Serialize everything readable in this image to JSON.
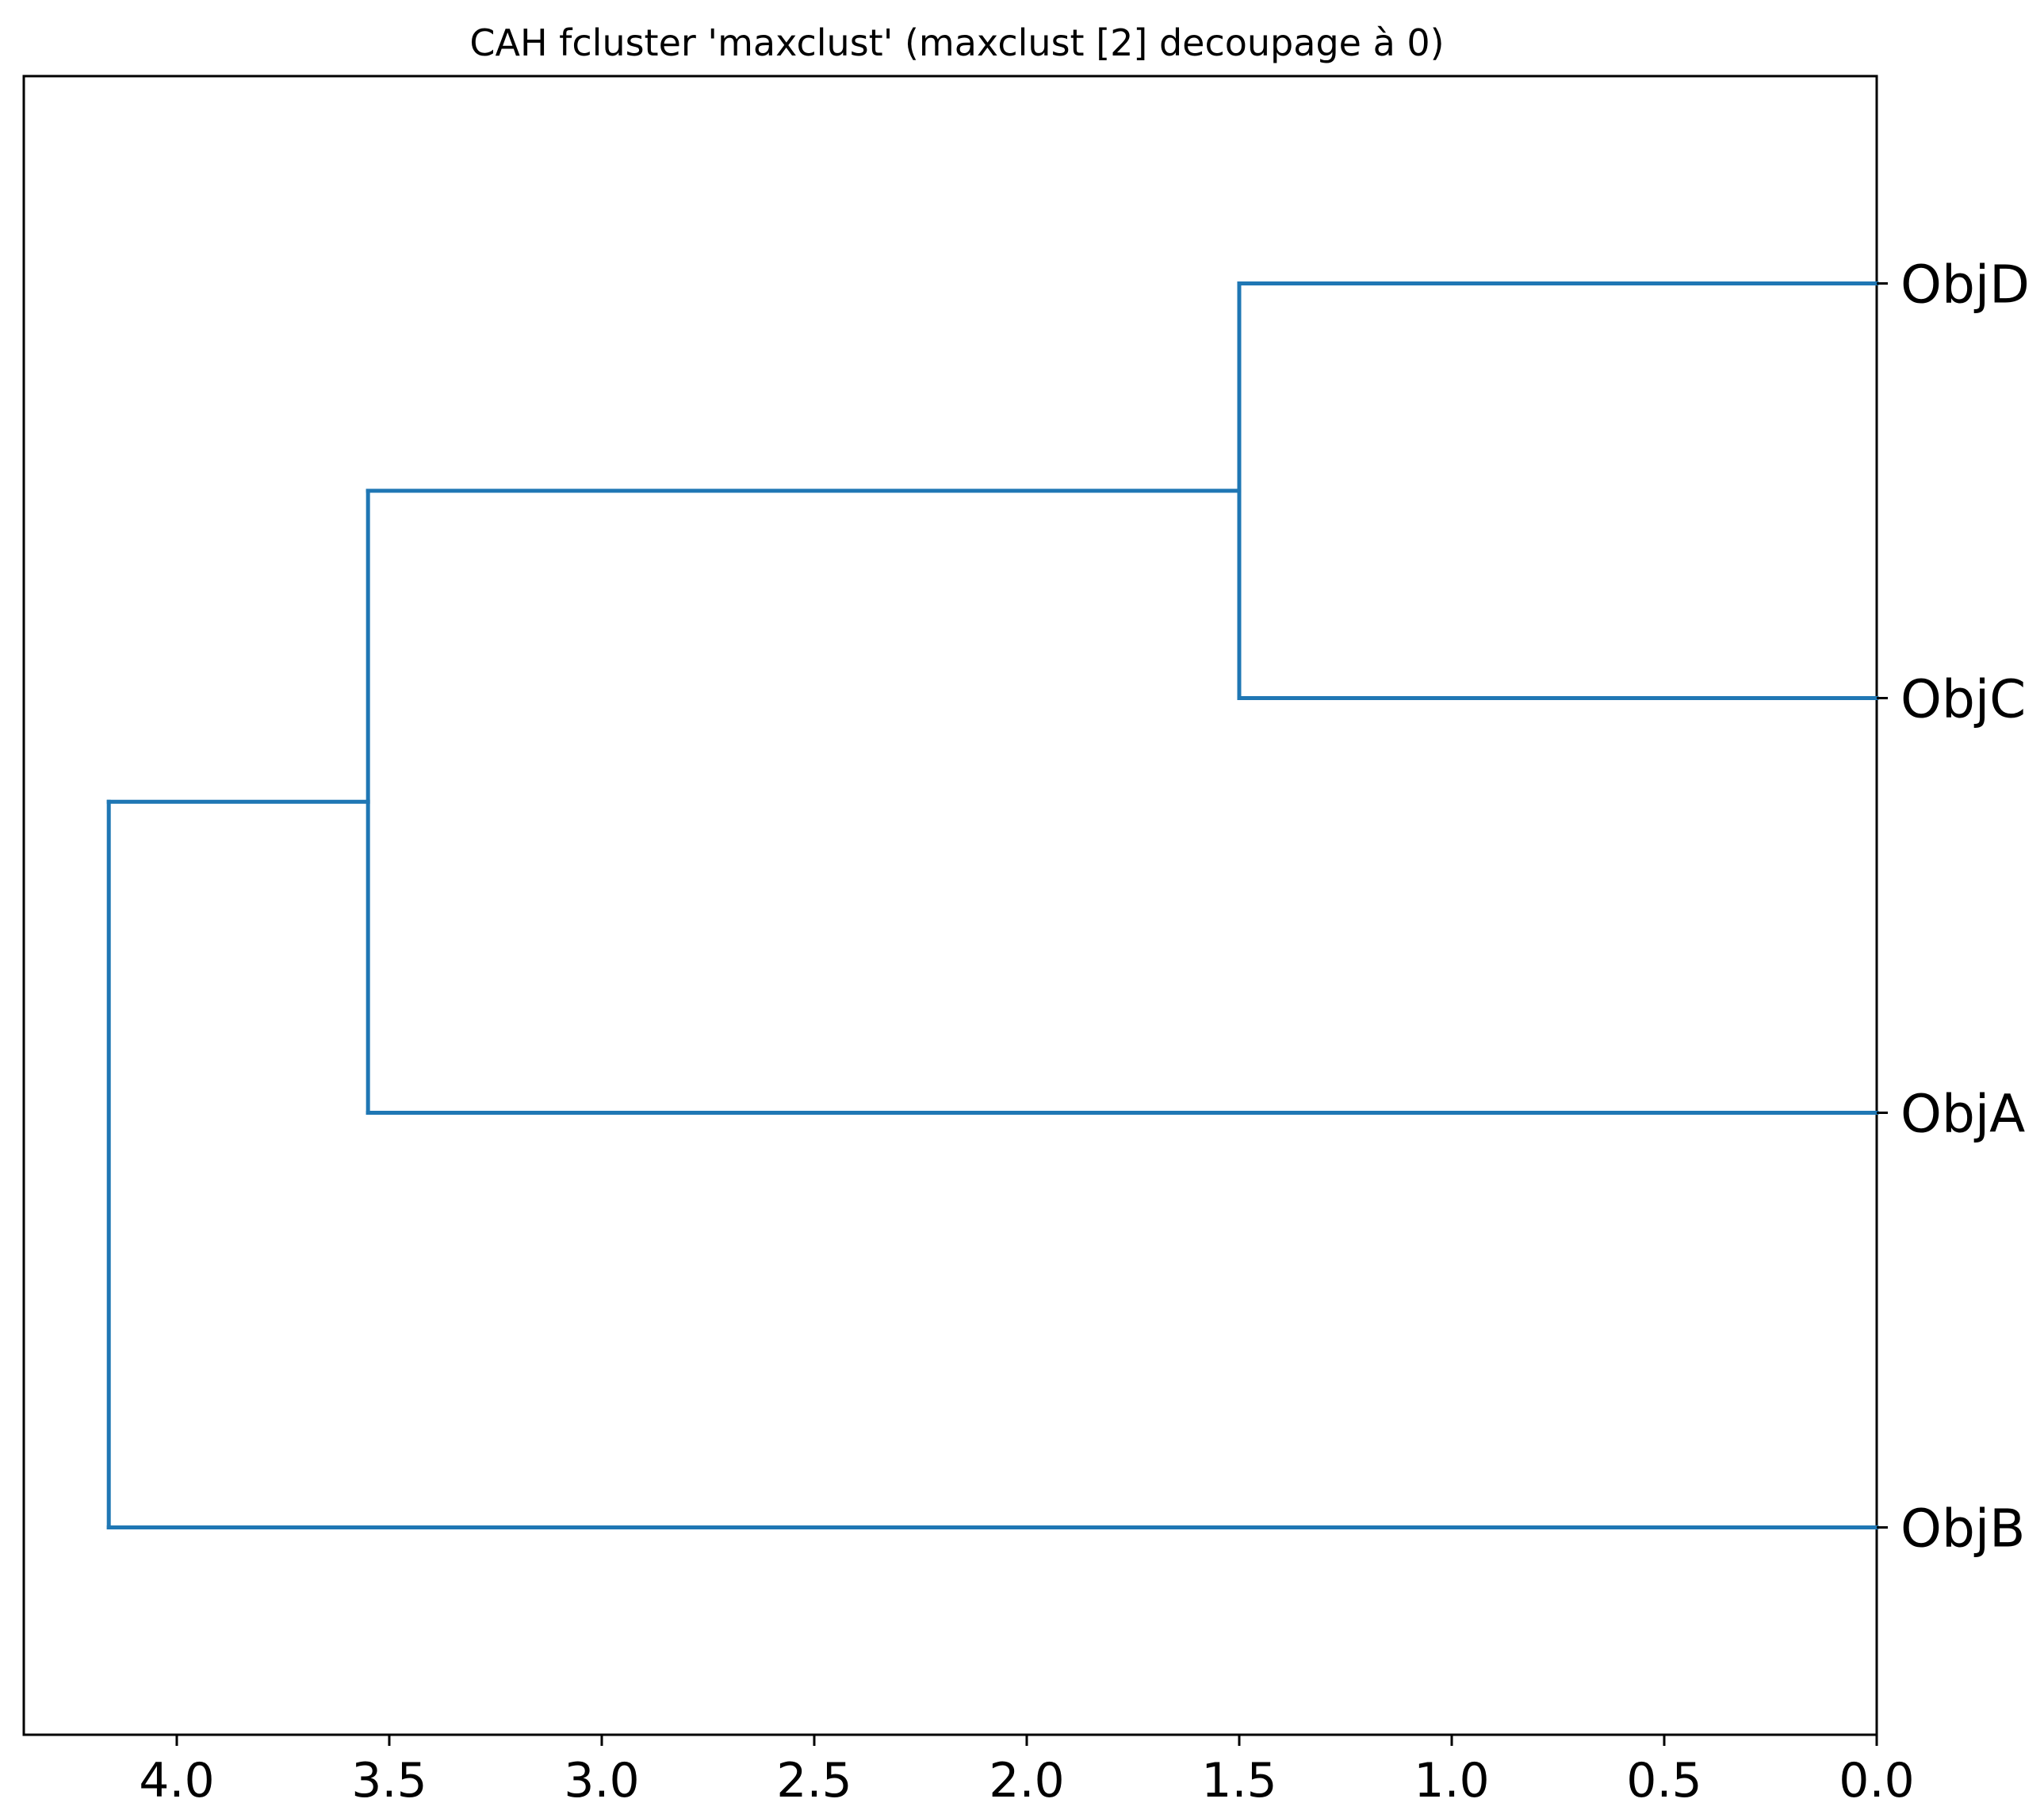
{
  "chart_data": {
    "type": "dendrogram",
    "title": "CAH fcluster 'maxclust' (maxclust [2] decoupage à 0)",
    "orientation": "left",
    "xlabel": "",
    "ylabel": "",
    "xlim": [
      4.36,
      0.0
    ],
    "x_ticks": [
      4.0,
      3.5,
      3.0,
      2.5,
      2.0,
      1.5,
      1.0,
      0.5,
      0.0
    ],
    "x_tick_labels": [
      "4.0",
      "3.5",
      "3.0",
      "2.5",
      "2.0",
      "1.5",
      "1.0",
      "0.5",
      "0.0"
    ],
    "leaves": [
      "ObjD",
      "ObjC",
      "ObjA",
      "ObjB"
    ],
    "merges": [
      {
        "children": [
          "ObjD",
          "ObjC"
        ],
        "height": 1.5
      },
      {
        "children": [
          "ObjD+ObjC",
          "ObjA"
        ],
        "height": 3.55
      },
      {
        "children": [
          "ObjD+ObjC+ObjA",
          "ObjB"
        ],
        "height": 4.16
      }
    ],
    "grid": false,
    "color": "#1f77b4"
  }
}
